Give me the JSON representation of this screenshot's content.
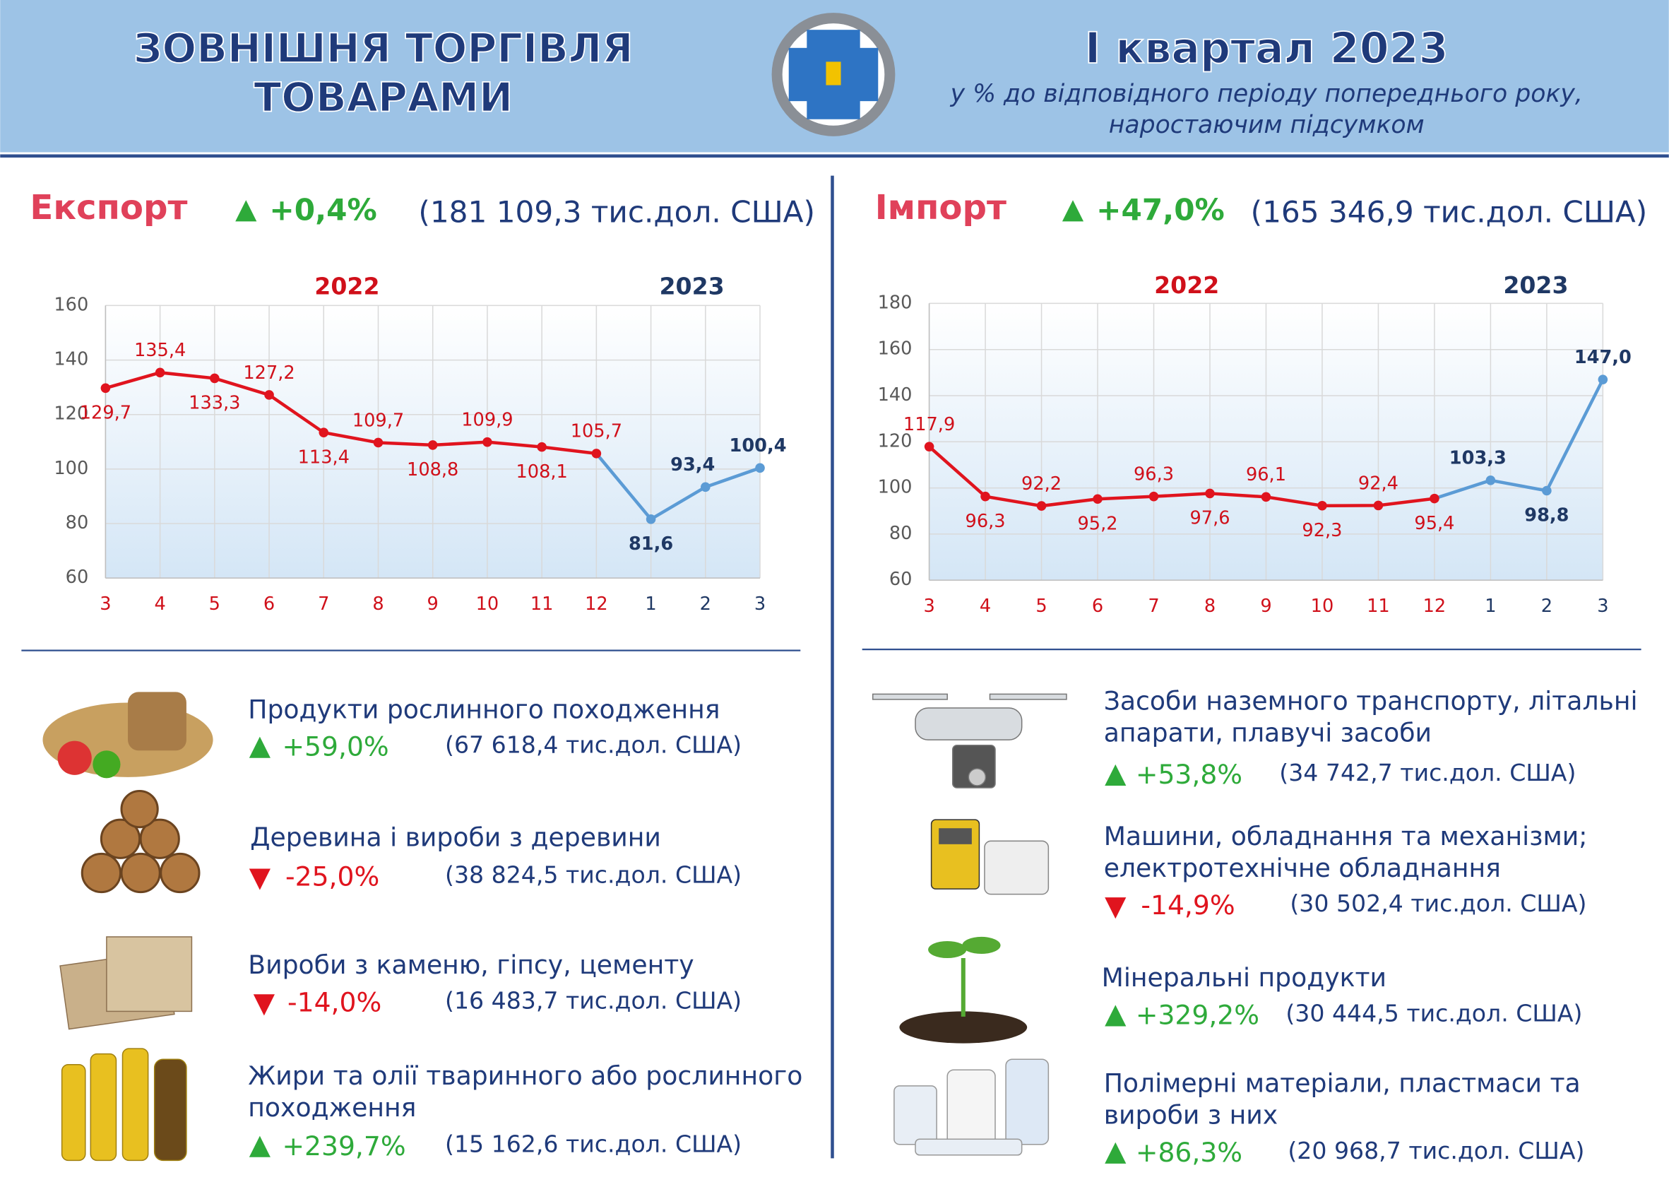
{
  "header": {
    "title_lines": [
      "ЗОВНІШНЯ ТОРГІВЛЯ",
      "ТОВАРАМИ"
    ],
    "period": "І квартал 2023",
    "subtitle_lines": [
      "у % до відповідного періоду попереднього року,",
      "наростаючим підсумком"
    ]
  },
  "export": {
    "label": "Експорт",
    "change": "+0,4%",
    "amount": "(181 109,3 тис.дол. США)",
    "items": [
      {
        "name": [
          "Продукти рослинного походження"
        ],
        "change": "+59,0%",
        "amount": "(67 618,4 тис.дол. США)"
      },
      {
        "name": [
          "Деревина і вироби з деревини"
        ],
        "change": "-25,0%",
        "amount": "(38 824,5 тис.дол. США)"
      },
      {
        "name": [
          "Вироби з каменю, гіпсу, цементу"
        ],
        "change": "-14,0%",
        "amount": "(16 483,7 тис.дол. США)"
      },
      {
        "name": [
          "Жири та олії тваринного або рослинного",
          "походження"
        ],
        "change": "+239,7%",
        "amount": "(15 162,6 тис.дол. США)"
      }
    ]
  },
  "import": {
    "label": "Імпорт",
    "change": "+47,0%",
    "amount": "(165 346,9 тис.дол. США)",
    "items": [
      {
        "name": [
          "Засоби наземного транспорту, літальні",
          "апарати, плавучі засоби"
        ],
        "change": "+53,8%",
        "amount": "(34 742,7 тис.дол. США)"
      },
      {
        "name": [
          "Машини, обладнання та механізми;",
          "електротехнічне обладнання"
        ],
        "change": "-14,9%",
        "amount": "(30 502,4 тис.дол. США)"
      },
      {
        "name": [
          "Мінеральні продукти"
        ],
        "change": "+329,2%",
        "amount": "(30 444,5 тис.дол. США)"
      },
      {
        "name": [
          "Полімерні матеріали, пластмаси та",
          "вироби з них"
        ],
        "change": "+86,3%",
        "amount": "(20 968,7 тис.дол. США)"
      }
    ]
  },
  "chart_data": [
    {
      "type": "line",
      "categories": [
        "3",
        "4",
        "5",
        "6",
        "7",
        "8",
        "9",
        "10",
        "11",
        "12",
        "1",
        "2",
        "3"
      ],
      "series": [
        {
          "name": "2022",
          "color": "#e0141e",
          "label_color": "#d0101a",
          "values": [
            129.7,
            135.4,
            133.3,
            127.2,
            113.4,
            109.7,
            108.8,
            109.9,
            108.1,
            105.7,
            null,
            null,
            null
          ],
          "value_labels": [
            "129,7",
            "135,4",
            "133,3",
            "127,2",
            "113,4",
            "109,7",
            "108,8",
            "109,9",
            "108,1",
            "105,7",
            null,
            null,
            null
          ]
        },
        {
          "name": "2023",
          "color": "#5b9bd5",
          "label_color": "#1f3864",
          "values": [
            null,
            null,
            null,
            null,
            null,
            null,
            null,
            null,
            null,
            null,
            81.6,
            93.4,
            100.4
          ],
          "value_labels": [
            null,
            null,
            null,
            null,
            null,
            null,
            null,
            null,
            null,
            null,
            "81,6",
            "93,4",
            "100,4"
          ]
        }
      ],
      "ylim": [
        60,
        160
      ],
      "yticks": [
        60,
        80,
        100,
        120,
        140,
        160
      ],
      "grid": true
    },
    {
      "type": "line",
      "categories": [
        "3",
        "4",
        "5",
        "6",
        "7",
        "8",
        "9",
        "10",
        "11",
        "12",
        "1",
        "2",
        "3"
      ],
      "series": [
        {
          "name": "2022",
          "color": "#e0141e",
          "label_color": "#d0101a",
          "values": [
            117.9,
            96.3,
            92.2,
            95.2,
            96.3,
            97.6,
            96.1,
            92.3,
            92.4,
            95.4,
            null,
            null,
            null
          ],
          "value_labels": [
            "117,9",
            "96,3",
            "92,2",
            "95,2",
            "96,3",
            "97,6",
            "96,1",
            "92,3",
            "92,4",
            "95,4",
            null,
            null,
            null
          ]
        },
        {
          "name": "2023",
          "color": "#5b9bd5",
          "label_color": "#1f3864",
          "values": [
            null,
            null,
            null,
            null,
            null,
            null,
            null,
            null,
            null,
            null,
            103.3,
            98.8,
            147.0
          ],
          "value_labels": [
            null,
            null,
            null,
            null,
            null,
            null,
            null,
            null,
            null,
            null,
            "103,3",
            "98,8",
            "147,0"
          ]
        }
      ],
      "ylim": [
        60,
        180
      ],
      "yticks": [
        60,
        80,
        100,
        120,
        140,
        160,
        180
      ],
      "grid": true
    }
  ]
}
